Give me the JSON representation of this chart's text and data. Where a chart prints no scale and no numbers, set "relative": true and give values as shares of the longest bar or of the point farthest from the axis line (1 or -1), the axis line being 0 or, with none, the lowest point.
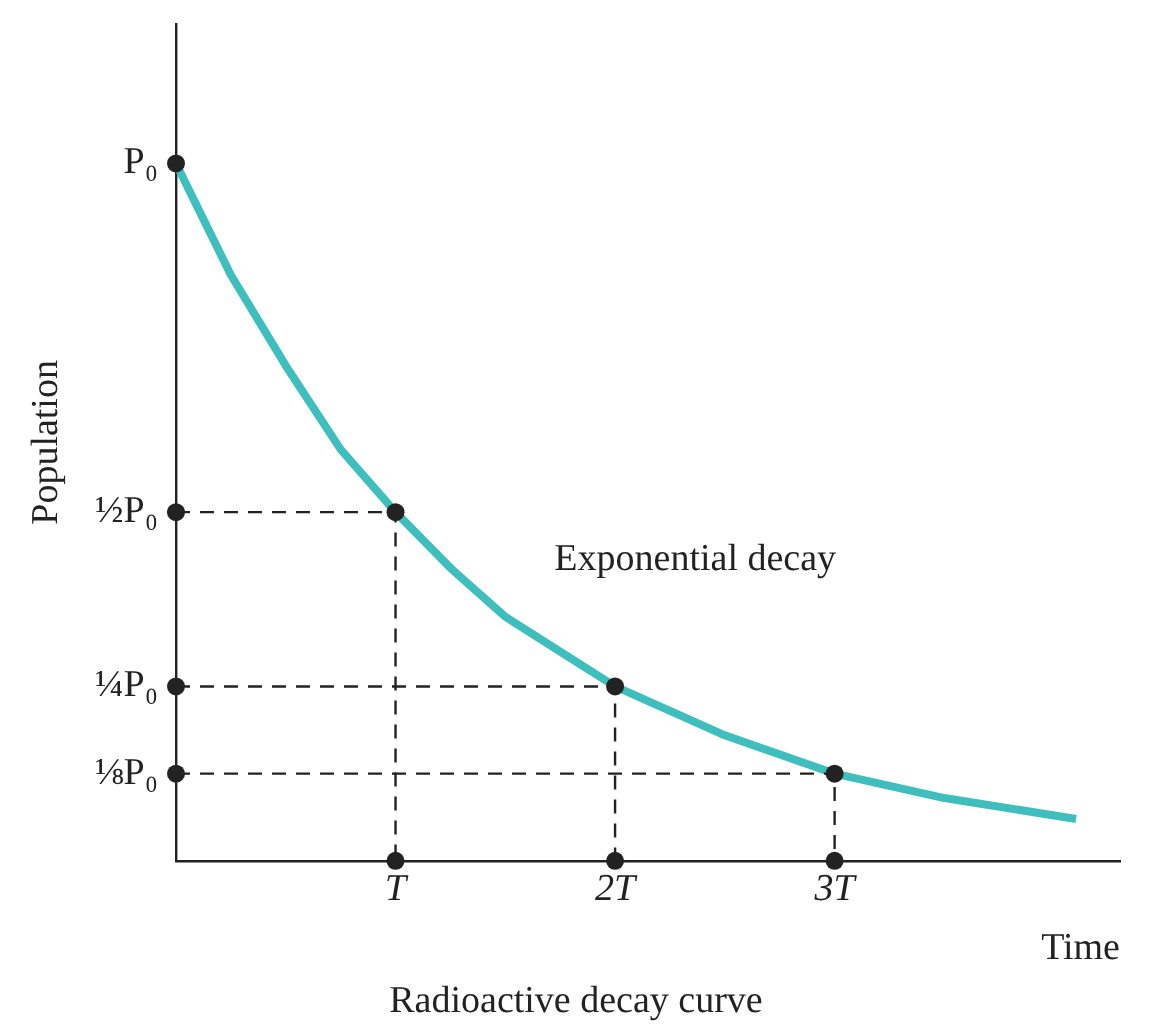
{
  "chart_data": {
    "type": "line",
    "xlabel": "Time",
    "ylabel": "Population",
    "relative": true,
    "annotations": [
      "Exponential decay",
      "Radioactive decay curve",
      "P₀",
      "½P₀",
      "¼P₀",
      "⅛P₀"
    ],
    "xlim": [
      0,
      4.3
    ],
    "xticks": [
      {
        "value": 1,
        "label": "T"
      },
      {
        "value": 2,
        "label": "2T"
      },
      {
        "value": 3,
        "label": "3T"
      }
    ],
    "grid": false,
    "legend": false,
    "series": [
      {
        "color": "#3ebfbd",
        "marker": "none",
        "line_style": "solid",
        "x": [
          0,
          0.25,
          0.5,
          0.75,
          1,
          1.25,
          1.5,
          1.75,
          2,
          2.5,
          3,
          3.5,
          4.1
        ],
        "values": [
          1,
          0.84,
          0.71,
          0.59,
          0.5,
          0.42,
          0.35,
          0.3,
          0.25,
          0.18,
          0.125,
          0.09,
          0.06
        ]
      },
      {
        "type": "scatter",
        "color": "#222222",
        "marker": "circle",
        "x": [
          0
        ],
        "values": [
          1
        ]
      },
      {
        "type": "line",
        "color": "#222222",
        "marker": "circle",
        "line_style": "dashed",
        "x": [
          0,
          1,
          1
        ],
        "values": [
          0.5,
          0.5,
          0
        ]
      },
      {
        "type": "line",
        "color": "#222222",
        "marker": "circle",
        "line_style": "dashed",
        "x": [
          0,
          2,
          2
        ],
        "values": [
          0.25,
          0.25,
          0
        ]
      },
      {
        "type": "line",
        "color": "#222222",
        "marker": "circle",
        "line_style": "dashed",
        "x": [
          0,
          3,
          3
        ],
        "values": [
          0.125,
          0.125,
          0
        ]
      }
    ]
  }
}
